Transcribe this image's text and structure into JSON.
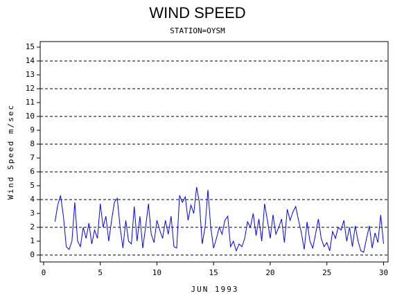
{
  "chart_data": {
    "type": "line",
    "title": "WIND SPEED",
    "subtitle": "STATION=OYSM",
    "x_label": "JUN 1993",
    "y_label": "Wind Speed m/sec",
    "xlim": [
      -0.3,
      30.4
    ],
    "xticks": [
      0,
      5,
      10,
      15,
      20,
      25,
      30
    ],
    "ylim": [
      -0.5,
      15.4
    ],
    "yticks": [
      0,
      1,
      2,
      3,
      4,
      5,
      6,
      7,
      8,
      9,
      10,
      11,
      12,
      13,
      14,
      15
    ],
    "grid_lines": [
      0,
      2,
      4,
      6,
      8,
      10,
      12,
      14
    ],
    "series": [
      {
        "color": "#0000ff",
        "x": [
          1,
          1.25,
          1.5,
          1.75,
          2,
          2.25,
          2.5,
          2.75,
          3,
          3.25,
          3.5,
          3.75,
          4,
          4.25,
          4.5,
          4.75,
          5,
          5.25,
          5.5,
          5.75,
          6,
          6.25,
          6.5,
          6.75,
          7,
          7.25,
          7.5,
          7.75,
          8,
          8.25,
          8.5,
          8.75,
          9,
          9.25,
          9.5,
          9.75,
          10,
          10.25,
          10.5,
          10.75,
          11,
          11.25,
          11.5,
          11.75,
          12,
          12.25,
          12.5,
          12.75,
          13,
          13.25,
          13.5,
          13.75,
          14,
          14.25,
          14.5,
          14.75,
          15,
          15.25,
          15.5,
          15.75,
          16,
          16.25,
          16.5,
          16.75,
          17,
          17.25,
          17.5,
          17.75,
          18,
          18.25,
          18.5,
          18.75,
          19,
          19.25,
          19.5,
          19.75,
          20,
          20.25,
          20.5,
          20.75,
          21,
          21.25,
          21.5,
          21.75,
          22,
          22.25,
          22.5,
          22.75,
          23,
          23.25,
          23.5,
          23.75,
          24,
          24.25,
          24.5,
          24.75,
          25,
          25.25,
          25.5,
          25.75,
          26,
          26.25,
          26.5,
          26.75,
          27,
          27.25,
          27.5,
          27.75,
          28,
          28.25,
          28.5,
          28.75,
          29,
          29.25,
          29.5,
          29.75,
          30
        ],
        "values": [
          2.4,
          3.6,
          4.3,
          2.8,
          0.6,
          0.4,
          1.0,
          3.8,
          1.0,
          0.6,
          2.0,
          1.2,
          2.3,
          0.8,
          1.8,
          1.2,
          3.7,
          2.0,
          2.8,
          1.0,
          2.5,
          3.8,
          4.1,
          2.0,
          0.5,
          2.5,
          1.0,
          0.8,
          3.5,
          1.0,
          2.8,
          0.5,
          2.0,
          3.7,
          1.5,
          0.9,
          2.5,
          1.8,
          1.2,
          2.5,
          1.5,
          2.8,
          0.6,
          0.5,
          4.3,
          3.8,
          4.2,
          2.5,
          3.6,
          3.0,
          4.9,
          3.8,
          0.8,
          2.0,
          4.7,
          2.0,
          0.5,
          1.2,
          2.0,
          1.5,
          2.5,
          2.8,
          0.6,
          1.0,
          0.3,
          0.8,
          0.6,
          1.2,
          2.4,
          2.0,
          3.0,
          1.4,
          2.6,
          1.0,
          3.7,
          2.5,
          1.2,
          2.9,
          1.5,
          2.0,
          2.6,
          0.9,
          3.3,
          2.5,
          3.1,
          3.5,
          2.5,
          1.6,
          0.4,
          2.4,
          1.0,
          0.5,
          1.5,
          2.6,
          1.2,
          0.6,
          0.9,
          0.3,
          1.7,
          1.2,
          2.0,
          1.8,
          2.5,
          1.0,
          2.0,
          0.6,
          2.1,
          1.0,
          0.3,
          0.2,
          1.2,
          2.1,
          0.5,
          1.6,
          0.9,
          2.9,
          0.8
        ]
      }
    ]
  }
}
